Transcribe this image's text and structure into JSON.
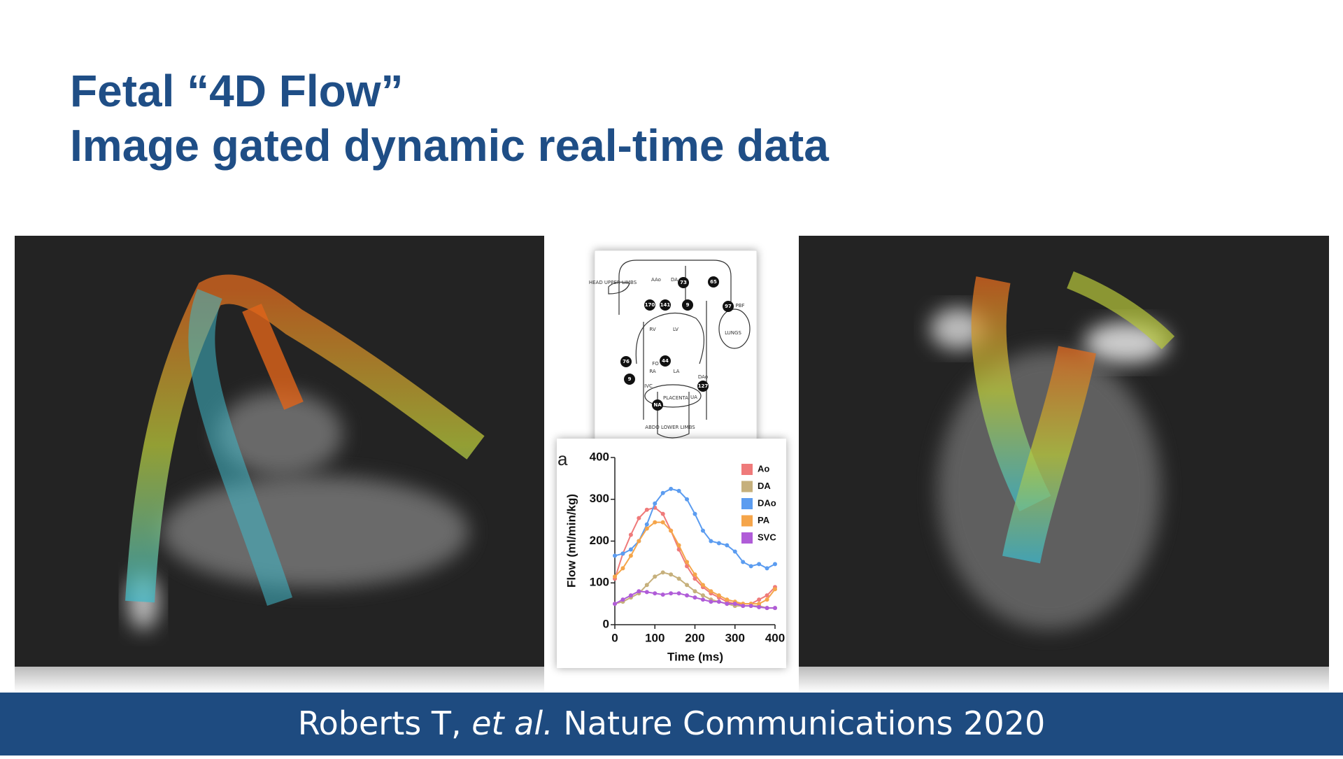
{
  "slide": {
    "title": [
      "Fetal “4D Flow”",
      "Image gated dynamic real-time data"
    ],
    "citation": {
      "authors": "Roberts T,",
      "etal": "et al.",
      "journal": "Nature Communications 2020"
    }
  },
  "diagram": {
    "labels": [
      "HEAD UPPER LIMBS",
      "AAo",
      "DA",
      "LUNGS",
      "PBF",
      "RV",
      "LV",
      "FO",
      "RA",
      "LA",
      "IVC",
      "DAo",
      "PLACENTA",
      "UA",
      "ABDO LOWER LIMBS"
    ],
    "nodes": [
      "73",
      "65",
      "170",
      "141",
      "9",
      "97",
      "76",
      "44",
      "9",
      "127",
      "NA"
    ]
  },
  "chart_data": {
    "type": "line",
    "panel_label": "a",
    "y_label": "Flow (ml/min/kg)",
    "x_label": "Time (ms)",
    "xlim": [
      0,
      400
    ],
    "xticks": [
      0,
      100,
      200,
      300,
      400
    ],
    "ylim": [
      0,
      400
    ],
    "yticks": [
      0,
      100,
      200,
      300,
      400
    ],
    "x": [
      0,
      20,
      40,
      60,
      80,
      100,
      120,
      140,
      160,
      180,
      200,
      220,
      240,
      260,
      280,
      300,
      320,
      340,
      360,
      380,
      400
    ],
    "series": [
      {
        "name": "Ao",
        "color": "#ef7a7a",
        "values": [
          110,
          170,
          215,
          255,
          275,
          280,
          265,
          225,
          180,
          140,
          110,
          90,
          75,
          65,
          55,
          50,
          50,
          50,
          60,
          70,
          90
        ]
      },
      {
        "name": "DA",
        "color": "#c6b07c",
        "values": [
          50,
          55,
          65,
          75,
          95,
          115,
          125,
          120,
          110,
          95,
          80,
          70,
          60,
          55,
          50,
          45,
          45,
          45,
          45,
          40,
          40
        ]
      },
      {
        "name": "DAo",
        "color": "#5b9cf0",
        "values": [
          165,
          170,
          180,
          200,
          240,
          290,
          315,
          325,
          320,
          300,
          265,
          225,
          200,
          195,
          190,
          175,
          150,
          140,
          145,
          135,
          145
        ]
      },
      {
        "name": "PA",
        "color": "#f5a54a",
        "values": [
          115,
          135,
          165,
          200,
          230,
          245,
          245,
          225,
          190,
          150,
          120,
          95,
          80,
          70,
          60,
          55,
          50,
          50,
          50,
          60,
          85
        ]
      },
      {
        "name": "SVC",
        "color": "#b05cd8",
        "values": [
          50,
          60,
          70,
          80,
          78,
          75,
          72,
          75,
          75,
          70,
          65,
          60,
          55,
          55,
          50,
          50,
          45,
          45,
          42,
          40,
          40
        ]
      }
    ]
  }
}
